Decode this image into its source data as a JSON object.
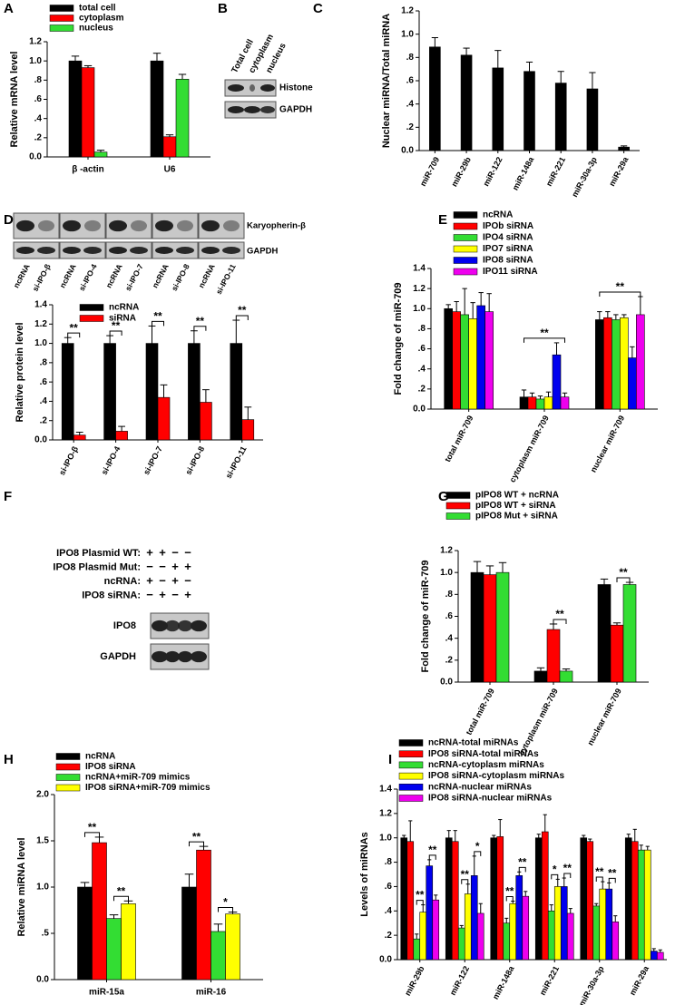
{
  "chart_data": [
    {
      "type": "bar",
      "panel": "A",
      "ylabel": "Relative mRNA level",
      "categories": [
        "β -actin",
        "U6"
      ],
      "series": [
        {
          "name": "total cell",
          "color": "#000000",
          "values": [
            1.0,
            1.0
          ],
          "errors": [
            0.05,
            0.08
          ]
        },
        {
          "name": "cytoplasm",
          "color": "#ff0000",
          "values": [
            0.93,
            0.21
          ],
          "errors": [
            0.02,
            0.02
          ]
        },
        {
          "name": "nucleus",
          "color": "#33dd33",
          "values": [
            0.05,
            0.81
          ],
          "errors": [
            0.02,
            0.05
          ]
        }
      ],
      "ylim": [
        0,
        1.2
      ],
      "yticks": [
        {
          "value": 0,
          "label": "0.0"
        },
        {
          "value": 0.2,
          "label": ".2"
        },
        {
          "value": 0.4,
          "label": ".4"
        },
        {
          "value": 0.6,
          "label": ".6"
        },
        {
          "value": 0.8,
          "label": ".8"
        },
        {
          "value": 1,
          "label": "1.0"
        },
        1.2
      ]
    },
    {
      "type": "bar",
      "panel": "C",
      "ylabel": "Nuclear miRNA/Total miRNA",
      "categories": [
        "miR-709",
        "miR-29b",
        "miR-122",
        "miR-148a",
        "miR-221",
        "miR-30a-3p",
        "miR-29a"
      ],
      "series": [
        {
          "color": "#000000",
          "values": [
            0.89,
            0.82,
            0.71,
            0.68,
            0.58,
            0.53,
            0.03
          ],
          "errors": [
            0.08,
            0.06,
            0.15,
            0.08,
            0.1,
            0.14,
            0.01
          ]
        }
      ],
      "ylim": [
        0,
        1.2
      ],
      "yticks": [
        {
          "value": 0,
          "label": "0.0"
        },
        {
          "value": 0.2,
          "label": ".2"
        },
        {
          "value": 0.4,
          "label": ".4"
        },
        {
          "value": 0.6,
          "label": ".6"
        },
        {
          "value": 0.8,
          "label": ".8"
        },
        {
          "value": 1,
          "label": "1.0"
        },
        1.2
      ]
    },
    {
      "type": "bar",
      "ylabel": "Relative protein level",
      "categories": [
        "si-IPO-β",
        "si-IPO-4",
        "si-IPO-7",
        "si-IPO-8",
        "si-IPO-11"
      ],
      "series": [
        {
          "name": "ncRNA",
          "color": "#000000",
          "values": [
            1.0,
            1.0,
            1.0,
            1.0,
            1.0
          ],
          "errors": [
            0.06,
            0.08,
            0.18,
            0.13,
            0.24
          ]
        },
        {
          "name": "siRNA",
          "color": "#ff0000",
          "values": [
            0.05,
            0.09,
            0.44,
            0.39,
            0.21
          ],
          "errors": [
            0.03,
            0.05,
            0.13,
            0.13,
            0.13
          ]
        }
      ],
      "annotations": [
        {
          "text": "**",
          "category": 0,
          "series": [
            0,
            1
          ]
        },
        {
          "text": "**",
          "category": 1,
          "series": [
            0,
            1
          ]
        },
        {
          "text": "**",
          "category": 2,
          "series": [
            0,
            1
          ]
        },
        {
          "text": "**",
          "category": 3,
          "series": [
            0,
            1
          ]
        },
        {
          "text": "**",
          "category": 4,
          "series": [
            0,
            1
          ]
        }
      ],
      "ylim": [
        0,
        1.4
      ],
      "yticks": [
        {
          "value": 0,
          "label": "0.0"
        },
        {
          "value": 0.2,
          "label": ".2"
        },
        {
          "value": 0.4,
          "label": ".4"
        },
        {
          "value": 0.6,
          "label": ".6"
        },
        {
          "value": 0.8,
          "label": ".8"
        },
        {
          "value": 1,
          "label": "1.0"
        },
        1.2,
        1.4
      ]
    },
    {
      "type": "bar",
      "panel": "E",
      "ylabel": "Fold change of miR-709",
      "categories": [
        "total miR-709",
        "cytoplasm miR-709",
        "nuclear miR-709"
      ],
      "series": [
        {
          "name": "ncRNA",
          "color": "#000000",
          "values": [
            1.0,
            0.12,
            0.89
          ],
          "errors": [
            0.04,
            0.07,
            0.08
          ]
        },
        {
          "name": "IPOb siRNA",
          "color": "#ff0000",
          "values": [
            0.97,
            0.12,
            0.91
          ],
          "errors": [
            0.1,
            0.04,
            0.06
          ]
        },
        {
          "name": "IPO4 siRNA",
          "color": "#33dd33",
          "values": [
            0.94,
            0.1,
            0.89
          ],
          "errors": [
            0.26,
            0.03,
            0.05
          ]
        },
        {
          "name": "IPO7 siRNA",
          "color": "#ffff00",
          "values": [
            0.9,
            0.12,
            0.91
          ],
          "errors": [
            0.16,
            0.05,
            0.03
          ]
        },
        {
          "name": "IPO8 siRNA",
          "color": "#0000ee",
          "values": [
            1.03,
            0.54,
            0.51
          ],
          "errors": [
            0.13,
            0.12,
            0.11
          ]
        },
        {
          "name": "IPO11 siRNA",
          "color": "#ee00ee",
          "values": [
            0.97,
            0.12,
            0.94
          ],
          "errors": [
            0.18,
            0.04,
            0.18
          ]
        }
      ],
      "annotations": [
        {
          "text": "**",
          "category": 1,
          "series": [
            0,
            5
          ]
        },
        {
          "text": "**",
          "category": 2,
          "series": [
            0,
            5
          ]
        }
      ],
      "ylim": [
        0,
        1.4
      ],
      "yticks": [
        {
          "value": 0,
          "label": "0.0"
        },
        {
          "value": 0.2,
          "label": ".2"
        },
        {
          "value": 0.4,
          "label": ".4"
        },
        {
          "value": 0.6,
          "label": ".6"
        },
        {
          "value": 0.8,
          "label": ".8"
        },
        {
          "value": 1,
          "label": "1.0"
        },
        1.2,
        1.4
      ]
    },
    {
      "type": "bar",
      "panel": "G",
      "ylabel": "Fold change of miR-709",
      "categories": [
        "total miR-709",
        "cytoplasm miR-709",
        "nuclear miR-709"
      ],
      "series": [
        {
          "name": "pIPO8 WT + ncRNA",
          "color": "#000000",
          "values": [
            1.0,
            0.1,
            0.89
          ],
          "errors": [
            0.1,
            0.03,
            0.05
          ]
        },
        {
          "name": "pIPO8 WT + siRNA",
          "color": "#ff0000",
          "values": [
            0.98,
            0.48,
            0.52
          ],
          "errors": [
            0.08,
            0.05,
            0.02
          ]
        },
        {
          "name": "pIPO8 Mut + siRNA",
          "color": "#33dd33",
          "values": [
            1.0,
            0.1,
            0.89
          ],
          "errors": [
            0.09,
            0.02,
            0.02
          ]
        }
      ],
      "annotations": [
        {
          "text": "**",
          "category": 1,
          "series": [
            1,
            2
          ]
        },
        {
          "text": "**",
          "category": 2,
          "series": [
            1,
            2
          ]
        }
      ],
      "ylim": [
        0,
        1.2
      ],
      "yticks": [
        {
          "value": 0,
          "label": "0.0"
        },
        {
          "value": 0.2,
          "label": ".2"
        },
        {
          "value": 0.4,
          "label": ".4"
        },
        {
          "value": 0.6,
          "label": ".6"
        },
        {
          "value": 0.8,
          "label": ".8"
        },
        {
          "value": 1,
          "label": "1.0"
        },
        1.2
      ]
    },
    {
      "type": "bar",
      "panel": "H",
      "ylabel": "Relative miRNA level",
      "categories": [
        "miR-15a",
        "miR-16"
      ],
      "series": [
        {
          "name": "ncRNA",
          "color": "#000000",
          "values": [
            1.0,
            1.0
          ],
          "errors": [
            0.05,
            0.14
          ]
        },
        {
          "name": "IPO8 siRNA",
          "color": "#ff0000",
          "values": [
            1.48,
            1.4
          ],
          "errors": [
            0.06,
            0.04
          ]
        },
        {
          "name": "ncRNA+miR-709 mimics",
          "color": "#33dd33",
          "values": [
            0.66,
            0.52
          ],
          "errors": [
            0.04,
            0.08
          ]
        },
        {
          "name": "IPO8 siRNA+miR-709 mimics",
          "color": "#ffff00",
          "values": [
            0.82,
            0.71
          ],
          "errors": [
            0.03,
            0.02
          ]
        }
      ],
      "annotations": [
        {
          "text": "**",
          "category": 0,
          "series": [
            0,
            1
          ]
        },
        {
          "text": "**",
          "category": 0,
          "series": [
            2,
            3
          ]
        },
        {
          "text": "**",
          "category": 1,
          "series": [
            0,
            1
          ]
        },
        {
          "text": "*",
          "category": 1,
          "series": [
            2,
            3
          ]
        }
      ],
      "ylim": [
        0,
        2.0
      ],
      "yticks": [
        {
          "value": 0,
          "label": "0.0"
        },
        {
          "value": 0.5,
          "label": ".5"
        },
        {
          "value": 1,
          "label": "1.0"
        },
        1.5,
        {
          "value": 2,
          "label": "2.0"
        }
      ]
    },
    {
      "type": "bar",
      "panel": "I",
      "ylabel": "Levels of miRNAs",
      "categories": [
        "miR-29b",
        "miR-122",
        "miR-148a",
        "miR-221",
        "miR-30a-3p",
        "miR-29a"
      ],
      "series": [
        {
          "name": "ncRNA-total miRNAs",
          "color": "#000000",
          "values": [
            1.0,
            1.0,
            1.0,
            1.0,
            1.0,
            1.0
          ],
          "errors": [
            0.02,
            0.06,
            0.02,
            0.03,
            0.02,
            0.03
          ]
        },
        {
          "name": "IPO8 siRNA-total miRNAs",
          "color": "#ff0000",
          "values": [
            0.97,
            0.97,
            1.01,
            1.05,
            0.97,
            0.97
          ],
          "errors": [
            0.17,
            0.09,
            0.14,
            0.14,
            0.02,
            0.1
          ]
        },
        {
          "name": "ncRNA-cytoplasm miRNAs",
          "color": "#33dd33",
          "values": [
            0.17,
            0.26,
            0.3,
            0.4,
            0.44,
            0.9
          ],
          "errors": [
            0.04,
            0.02,
            0.04,
            0.05,
            0.02,
            0.04
          ]
        },
        {
          "name": "IPO8 siRNA-cytoplasm miRNAs",
          "color": "#ffff00",
          "values": [
            0.39,
            0.54,
            0.46,
            0.6,
            0.58,
            0.9
          ],
          "errors": [
            0.06,
            0.08,
            0.02,
            0.06,
            0.06,
            0.03
          ]
        },
        {
          "name": "ncRNA-nuclear miRNAs",
          "color": "#0000ee",
          "values": [
            0.77,
            0.69,
            0.69,
            0.6,
            0.58,
            0.07
          ],
          "errors": [
            0.05,
            0.16,
            0.03,
            0.07,
            0.05,
            0.02
          ]
        },
        {
          "name": "IPO8 siRNA-nuclear miRNAs",
          "color": "#ee00ee",
          "values": [
            0.49,
            0.38,
            0.52,
            0.38,
            0.31,
            0.06
          ],
          "errors": [
            0.04,
            0.08,
            0.04,
            0.04,
            0.05,
            0.02
          ]
        }
      ],
      "annotations": [
        {
          "text": "**",
          "category": 0,
          "series": [
            2,
            3
          ]
        },
        {
          "text": "**",
          "category": 0,
          "series": [
            4,
            5
          ]
        },
        {
          "text": "**",
          "category": 1,
          "series": [
            2,
            3
          ]
        },
        {
          "text": "*",
          "category": 1,
          "series": [
            4,
            5
          ]
        },
        {
          "text": "**",
          "category": 2,
          "series": [
            2,
            3
          ]
        },
        {
          "text": "**",
          "category": 2,
          "series": [
            4,
            5
          ]
        },
        {
          "text": "*",
          "category": 3,
          "series": [
            2,
            3
          ]
        },
        {
          "text": "**",
          "category": 3,
          "series": [
            4,
            5
          ]
        },
        {
          "text": "**",
          "category": 4,
          "series": [
            2,
            3
          ]
        },
        {
          "text": "**",
          "category": 4,
          "series": [
            4,
            5
          ]
        }
      ],
      "ylim": [
        0,
        1.4
      ],
      "yticks": [
        {
          "value": 0,
          "label": "0.0"
        },
        {
          "value": 0.2,
          "label": ".2"
        },
        {
          "value": 0.4,
          "label": ".4"
        },
        {
          "value": 0.6,
          "label": ".6"
        },
        {
          "value": 0.8,
          "label": ".8"
        },
        {
          "value": 1,
          "label": "1.0"
        },
        1.2,
        1.4
      ]
    }
  ],
  "blots": [
    {
      "panel": "B",
      "lanes": [
        "Total cell",
        "cytoplasm",
        "nucleus"
      ],
      "bands": [
        "Histone",
        "GAPDH"
      ]
    },
    {
      "panel": "D",
      "lanes": [
        "ncRNA",
        "si-IPO-β",
        "ncRNA",
        "si-IPO-4",
        "ncRNA",
        "si-IPO-7",
        "ncRNA",
        "si-IPO-8",
        "ncRNA",
        "si-IPO-11"
      ],
      "bands": [
        "Karyopherin-β",
        "GAPDH"
      ]
    },
    {
      "panel": "F",
      "conditions": [
        {
          "label": "IPO8 Plasmid WT:",
          "signs": [
            "+",
            "+",
            "−",
            "−"
          ]
        },
        {
          "label": "IPO8 Plasmid Mut:",
          "signs": [
            "−",
            "−",
            "+",
            "+"
          ]
        },
        {
          "label": "ncRNA:",
          "signs": [
            "+",
            "−",
            "+",
            "−"
          ]
        },
        {
          "label": "IPO8 siRNA:",
          "signs": [
            "−",
            "+",
            "−",
            "+"
          ]
        }
      ],
      "bands": [
        "IPO8",
        "GAPDH"
      ]
    }
  ]
}
